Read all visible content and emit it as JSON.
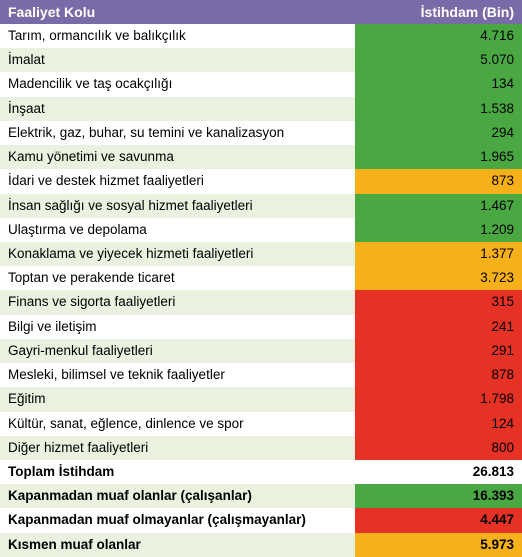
{
  "header": {
    "left": "Faaliyet Kolu",
    "right": "İstihdam (Bin)",
    "bg_color": "#7a6ba8",
    "text_color": "#ffffff",
    "fontsize": 14,
    "fontweight": "bold"
  },
  "label_column": {
    "bg_colors_alternating": [
      "#ffffff",
      "#eaf1df"
    ],
    "text_color": "#000000",
    "fontsize": 13.5
  },
  "value_column": {
    "text_color": "#000000",
    "fontsize": 13.5,
    "align": "right"
  },
  "value_colors": {
    "green": "#4aa843",
    "yellow": "#f6b11a",
    "red": "#e53224",
    "light_green_alt": "#eaf1df",
    "white": "#ffffff"
  },
  "rows": [
    {
      "label": "Tarım, ormancılık ve balıkçılık",
      "value": "4.716",
      "value_bg": "#4aa843",
      "bold": false
    },
    {
      "label": "İmalat",
      "value": "5.070",
      "value_bg": "#4aa843",
      "bold": false
    },
    {
      "label": "Madencilik ve taş ocakçılığı",
      "value": "134",
      "value_bg": "#4aa843",
      "bold": false
    },
    {
      "label": "İnşaat",
      "value": "1.538",
      "value_bg": "#4aa843",
      "bold": false
    },
    {
      "label": "Elektrik, gaz, buhar, su temini ve kanalizasyon",
      "value": "294",
      "value_bg": "#4aa843",
      "bold": false
    },
    {
      "label": "Kamu yönetimi ve savunma",
      "value": "1.965",
      "value_bg": "#4aa843",
      "bold": false
    },
    {
      "label": "İdari ve destek hizmet faaliyetleri",
      "value": "873",
      "value_bg": "#f6b11a",
      "bold": false
    },
    {
      "label": "İnsan sağlığı ve sosyal hizmet faaliyetleri",
      "value": "1.467",
      "value_bg": "#4aa843",
      "bold": false
    },
    {
      "label": "Ulaştırma ve depolama",
      "value": "1.209",
      "value_bg": "#4aa843",
      "bold": false
    },
    {
      "label": "Konaklama ve yiyecek hizmeti faaliyetleri",
      "value": "1.377",
      "value_bg": "#f6b11a",
      "bold": false
    },
    {
      "label": "Toptan ve perakende ticaret",
      "value": "3.723",
      "value_bg": "#f6b11a",
      "bold": false
    },
    {
      "label": "Finans ve sigorta faaliyetleri",
      "value": "315",
      "value_bg": "#e53224",
      "bold": false
    },
    {
      "label": "Bilgi ve iletişim",
      "value": "241",
      "value_bg": "#e53224",
      "bold": false
    },
    {
      "label": "Gayri-menkul faaliyetleri",
      "value": "291",
      "value_bg": "#e53224",
      "bold": false
    },
    {
      "label": "Mesleki, bilimsel ve teknik faaliyetler",
      "value": "878",
      "value_bg": "#e53224",
      "bold": false
    },
    {
      "label": "Eğitim",
      "value": "1.798",
      "value_bg": "#e53224",
      "bold": false
    },
    {
      "label": "Kültür, sanat, eğlence, dinlence ve spor",
      "value": "124",
      "value_bg": "#e53224",
      "bold": false
    },
    {
      "label": "Diğer hizmet faaliyetleri",
      "value": "800",
      "value_bg": "#e53224",
      "bold": false
    },
    {
      "label": "Toplam İstihdam",
      "value": "26.813",
      "value_bg": "#ffffff",
      "bold": true
    },
    {
      "label": "Kapanmadan muaf olanlar (çalışanlar)",
      "value": "16.393",
      "value_bg": "#4aa843",
      "bold": true
    },
    {
      "label": "Kapanmadan muaf olmayanlar (çalışmayanlar)",
      "value": "4.447",
      "value_bg": "#e53224",
      "bold": true
    },
    {
      "label": "Kısmen muaf olanlar",
      "value": "5.973",
      "value_bg": "#f6b11a",
      "bold": true
    }
  ]
}
